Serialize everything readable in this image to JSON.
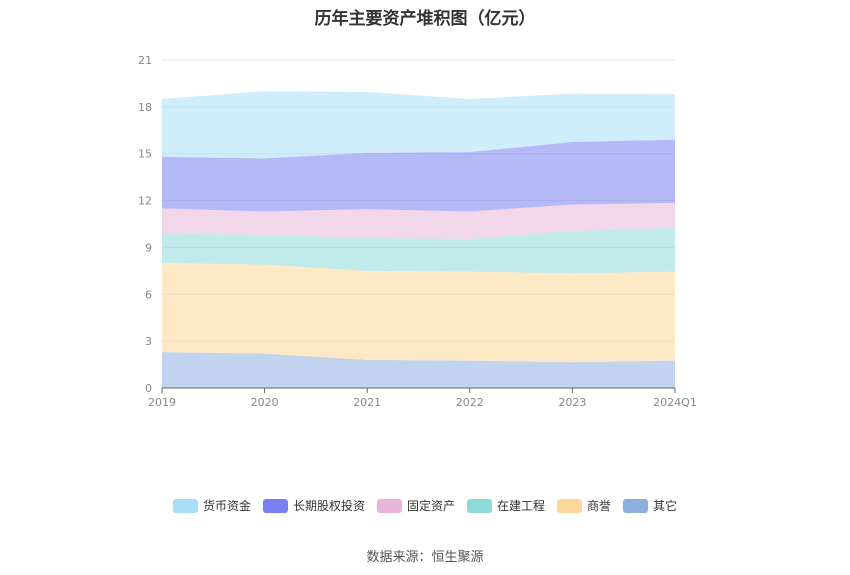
{
  "chart_data": {
    "type": "area",
    "stacked": true,
    "title": "历年主要资产堆积图（亿元）",
    "categories": [
      "2019",
      "2020",
      "2021",
      "2022",
      "2023",
      "2024Q1"
    ],
    "ylim": [
      0,
      21
    ],
    "yticks": [
      0,
      3,
      6,
      9,
      12,
      15,
      18,
      21
    ],
    "grid": true,
    "legend_position": "bottom",
    "series": [
      {
        "name": "其它",
        "color": "#8eaee0",
        "values": [
          2.3,
          2.2,
          1.8,
          1.75,
          1.65,
          1.75
        ]
      },
      {
        "name": "商誉",
        "color": "#fcd798",
        "values": [
          5.7,
          5.7,
          5.7,
          5.7,
          5.7,
          5.7
        ]
      },
      {
        "name": "在建工程",
        "color": "#8ed8d8",
        "values": [
          1.9,
          1.9,
          2.1,
          2.1,
          2.7,
          2.8
        ]
      },
      {
        "name": "固定资产",
        "color": "#e8b4d8",
        "values": [
          1.6,
          1.5,
          1.85,
          1.75,
          1.7,
          1.6
        ]
      },
      {
        "name": "长期股权投资",
        "color": "#7a7ff3",
        "values": [
          3.3,
          3.4,
          3.6,
          3.8,
          4.0,
          4.05
        ]
      },
      {
        "name": "货币资金",
        "color": "#a8def8",
        "values": [
          3.7,
          4.3,
          3.9,
          3.4,
          3.1,
          2.9
        ]
      }
    ]
  },
  "legend_order": [
    "货币资金",
    "长期股权投资",
    "固定资产",
    "在建工程",
    "商誉",
    "其它"
  ],
  "source": "数据来源：恒生聚源"
}
